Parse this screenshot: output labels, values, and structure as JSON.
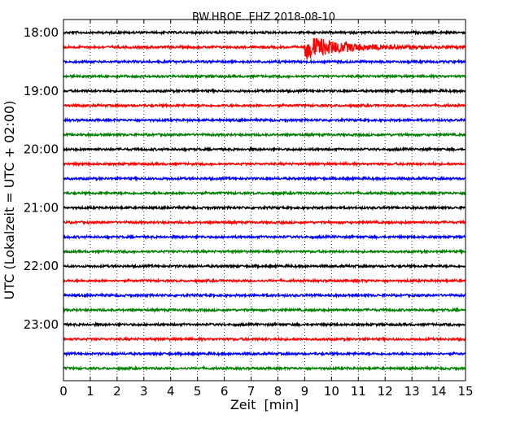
{
  "chart_data": {
    "type": "line",
    "title": "BW.HROE..EHZ 2018-08-10",
    "xlabel": "Zeit  [min]",
    "ylabel": "UTC (Lokalzeit = UTC + 02:00)",
    "xlim": [
      0,
      15
    ],
    "x_ticks": [
      0,
      1,
      2,
      3,
      4,
      5,
      6,
      7,
      8,
      9,
      10,
      11,
      12,
      13,
      14,
      15
    ],
    "x_tick_labels": [
      "0",
      "1",
      "2",
      "3",
      "4",
      "5",
      "6",
      "7",
      "8",
      "9",
      "10",
      "11",
      "12",
      "13",
      "14",
      "15"
    ],
    "y_tick_labels": [
      "18:00",
      "19:00",
      "20:00",
      "21:00",
      "22:00",
      "23:00"
    ],
    "y_tick_rows": [
      0,
      4,
      8,
      12,
      16,
      20
    ],
    "grid": "vertical dotted lines at each minute",
    "row_interval_min": 15,
    "color_cycle": [
      "#000000",
      "#ff0000",
      "#0000ff",
      "#008000"
    ],
    "series": [
      {
        "start": "18:00"
      },
      {
        "start": "18:15",
        "event": {
          "onset_min": 9.0,
          "peak_amplitude": 1.0,
          "decay_to_min": 13.0
        }
      },
      {
        "start": "18:30"
      },
      {
        "start": "18:45"
      },
      {
        "start": "19:00"
      },
      {
        "start": "19:15"
      },
      {
        "start": "19:30"
      },
      {
        "start": "19:45"
      },
      {
        "start": "20:00"
      },
      {
        "start": "20:15"
      },
      {
        "start": "20:30"
      },
      {
        "start": "20:45"
      },
      {
        "start": "21:00"
      },
      {
        "start": "21:15"
      },
      {
        "start": "21:30"
      },
      {
        "start": "21:45"
      },
      {
        "start": "22:00"
      },
      {
        "start": "22:15"
      },
      {
        "start": "22:30"
      },
      {
        "start": "22:45"
      },
      {
        "start": "23:00"
      },
      {
        "start": "23:15"
      },
      {
        "start": "23:30"
      },
      {
        "start": "23:45"
      }
    ]
  }
}
